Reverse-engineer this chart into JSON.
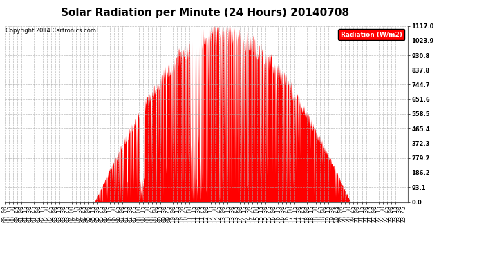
{
  "title": "Solar Radiation per Minute (24 Hours) 20140708",
  "copyright_text": "Copyright 2014 Cartronics.com",
  "legend_label": "Radiation (W/m2)",
  "bar_color": "#FF0000",
  "background_color": "#FFFFFF",
  "plot_bg_color": "#FFFFFF",
  "grid_color": "#AAAAAA",
  "y_tick_values": [
    0.0,
    93.1,
    186.2,
    279.2,
    372.3,
    465.4,
    558.5,
    651.6,
    744.7,
    837.8,
    930.8,
    1023.9,
    1117.0
  ],
  "y_max": 1117.0,
  "y_min": 0.0,
  "title_fontsize": 11,
  "axis_fontsize": 6,
  "copyright_fontsize": 6,
  "sunrise_min": 320,
  "sunset_min": 1235,
  "max_radiation": 1117.0
}
